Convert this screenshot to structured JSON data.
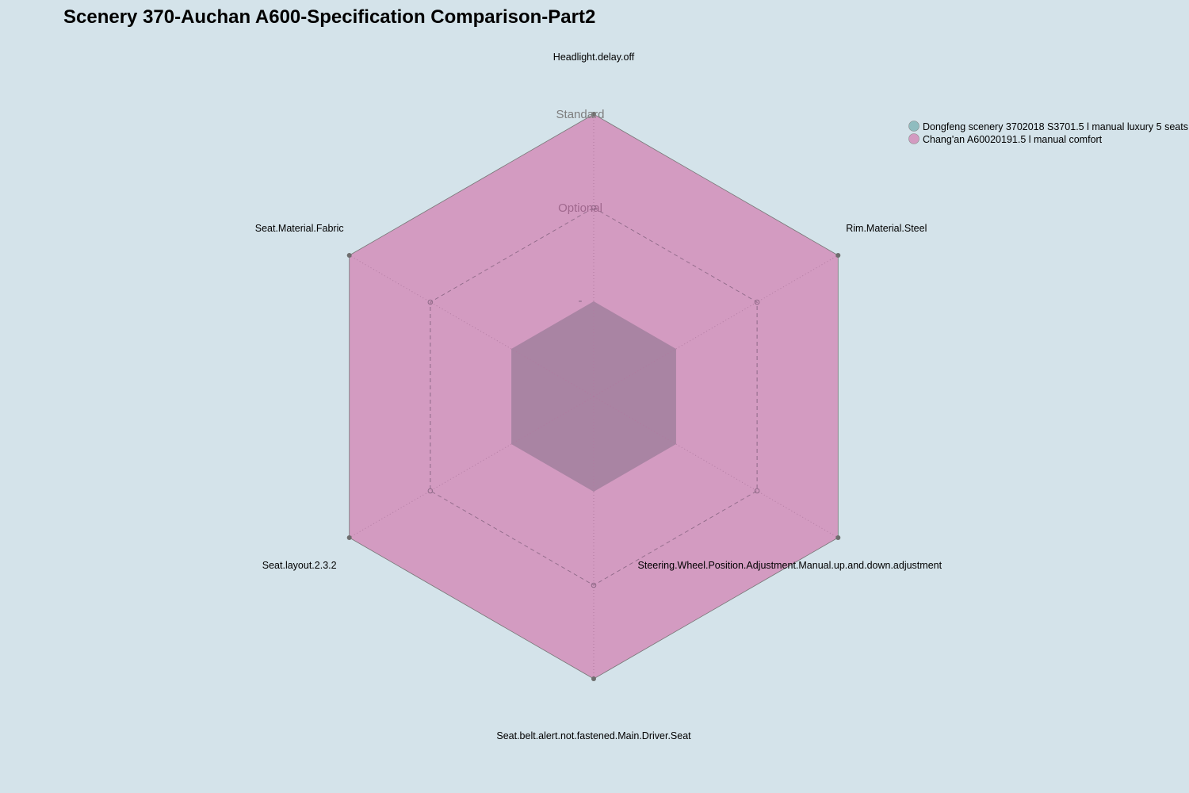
{
  "chart_data": {
    "type": "radar",
    "title": "Scenery 370-Auchan A600-Specification Comparison-Part2",
    "axes": [
      "Headlight.delay.off",
      "Rim.Material.Steel",
      "Steering.Wheel.Position.Adjustment.Manual.up.and.down.adjustment",
      "Seat.belt.alert.not.fastened.Main.Driver.Seat",
      "Seat.layout.2.3.2",
      "Seat.Material.Fabric"
    ],
    "levels": [
      "-",
      "Optional",
      "Standard"
    ],
    "level_label_colors": [
      "#8a6a86",
      "#a0688e",
      "#7d7d7d"
    ],
    "series": [
      {
        "name": "Dongfeng scenery 3702018 S3701.5 l manual luxury 5 seats",
        "values": [
          "-",
          "-",
          "-",
          "-",
          "-",
          "-"
        ],
        "value_levels": [
          0,
          0,
          0,
          0,
          0,
          0
        ],
        "color": "#8fbcbf"
      },
      {
        "name": "Chang'an A60020191.5 l manual comfort",
        "values": [
          "Standard",
          "Standard",
          "Standard",
          "Standard",
          "Standard",
          "Standard"
        ],
        "value_levels": [
          2,
          2,
          2,
          2,
          2,
          2
        ],
        "color": "#d39bc1"
      }
    ],
    "overlap_color": "#a984a3",
    "background": "#d4e3ea",
    "legend_position": "top-right"
  }
}
